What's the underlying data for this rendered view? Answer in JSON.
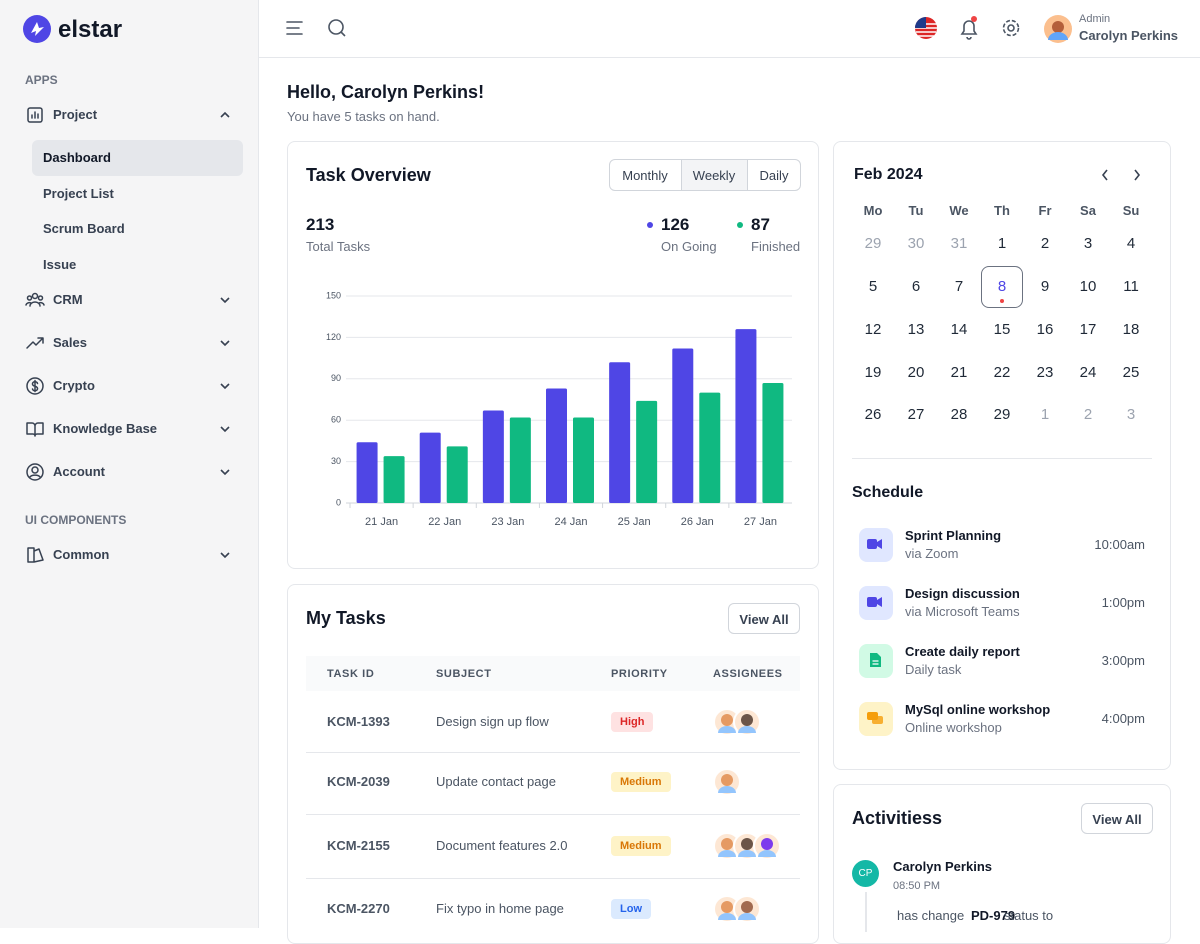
{
  "sidebar": {
    "logo": "elstar",
    "sections": [
      {
        "title": "APPS",
        "items": [
          {
            "label": "Project",
            "expanded": true,
            "children": [
              "Dashboard",
              "Project List",
              "Scrum Board",
              "Issue"
            ],
            "active_child": 0
          },
          {
            "label": "CRM"
          },
          {
            "label": "Sales"
          },
          {
            "label": "Crypto"
          },
          {
            "label": "Knowledge Base"
          },
          {
            "label": "Account"
          }
        ]
      },
      {
        "title": "UI COMPONENTS",
        "items": [
          {
            "label": "Common"
          }
        ]
      }
    ]
  },
  "header": {
    "role": "Admin",
    "user": "Carolyn Perkins"
  },
  "greeting": {
    "title": "Hello, Carolyn Perkins!",
    "subtitle": "You have 5 tasks on hand."
  },
  "task_overview": {
    "title": "Task Overview",
    "tabs": [
      "Monthly",
      "Weekly",
      "Daily"
    ],
    "active_tab": 1,
    "total": 213,
    "total_label": "Total Tasks",
    "series_totals": [
      126,
      87
    ]
  },
  "chart_data": {
    "type": "bar",
    "categories": [
      "21 Jan",
      "22 Jan",
      "23 Jan",
      "24 Jan",
      "25 Jan",
      "26 Jan",
      "27 Jan"
    ],
    "series": [
      {
        "name": "On Going",
        "color": "#4f46e5",
        "values": [
          44,
          51,
          67,
          83,
          102,
          112,
          126
        ]
      },
      {
        "name": "Finished",
        "color": "#10b981",
        "values": [
          34,
          41,
          62,
          62,
          74,
          80,
          87
        ]
      }
    ],
    "ylim": [
      0,
      150
    ],
    "yticks": [
      0,
      30,
      60,
      90,
      120,
      150
    ],
    "grid": true
  },
  "calendar": {
    "month": "Feb 2024",
    "weekdays": [
      "Mo",
      "Tu",
      "We",
      "Th",
      "Fr",
      "Sa",
      "Su"
    ],
    "previous_month_days": [
      29,
      30,
      31
    ],
    "days": [
      1,
      2,
      3,
      4,
      5,
      6,
      7,
      8,
      9,
      10,
      11,
      12,
      13,
      14,
      15,
      16,
      17,
      18,
      19,
      20,
      21,
      22,
      23,
      24,
      25,
      26,
      27,
      28,
      29
    ],
    "next_month_days": [
      1,
      2,
      3
    ],
    "selected_day": 8
  },
  "schedule": {
    "title": "Schedule",
    "items": [
      {
        "title": "Sprint Planning",
        "subtitle": "via Zoom",
        "time": "10:00am",
        "color": "#e0e7ff",
        "icon_color": "#4f46e5"
      },
      {
        "title": "Design discussion",
        "subtitle": "via Microsoft Teams",
        "time": "1:00pm",
        "color": "#e0e7ff",
        "icon_color": "#4f46e5"
      },
      {
        "title": "Create daily report",
        "subtitle": "Daily task",
        "time": "3:00pm",
        "color": "#d1fae5",
        "icon_color": "#10b981"
      },
      {
        "title": "MySql online workshop",
        "subtitle": "Online workshop",
        "time": "4:00pm",
        "color": "#fef3c7",
        "icon_color": "#f59e0b"
      }
    ]
  },
  "my_tasks": {
    "title": "My Tasks",
    "button": "View All",
    "columns": [
      "TASK ID",
      "SUBJECT",
      "PRIORITY",
      "ASSIGNEES"
    ],
    "rows": [
      {
        "id": "KCM-1393",
        "subject": "Design sign up flow",
        "priority": "High",
        "priority_colors": [
          "#fee2e2",
          "#dc2626"
        ],
        "assignees": [
          "#e59a63",
          "#6b5548"
        ]
      },
      {
        "id": "KCM-2039",
        "subject": "Update contact page",
        "priority": "Medium",
        "priority_colors": [
          "#fef3c7",
          "#d97706"
        ],
        "assignees": [
          "#e59a63"
        ]
      },
      {
        "id": "KCM-2155",
        "subject": "Document features 2.0",
        "priority": "Medium",
        "priority_colors": [
          "#fef3c7",
          "#d97706"
        ],
        "assignees": [
          "#e59a63",
          "#6b5548",
          "#7c3aed"
        ]
      },
      {
        "id": "KCM-2270",
        "subject": "Fix typo in home page",
        "priority": "Low",
        "priority_colors": [
          "#dbeafe",
          "#2563eb"
        ],
        "assignees": [
          "#e59a63",
          "#a16a4f"
        ]
      }
    ]
  },
  "activities": {
    "title": "Activitiess",
    "button": "View All",
    "entries": [
      {
        "initials": "CP",
        "name": "Carolyn Perkins",
        "time": "08:50 PM",
        "action": "has change",
        "ticket": "PD-979",
        "rest": "status to"
      }
    ]
  }
}
